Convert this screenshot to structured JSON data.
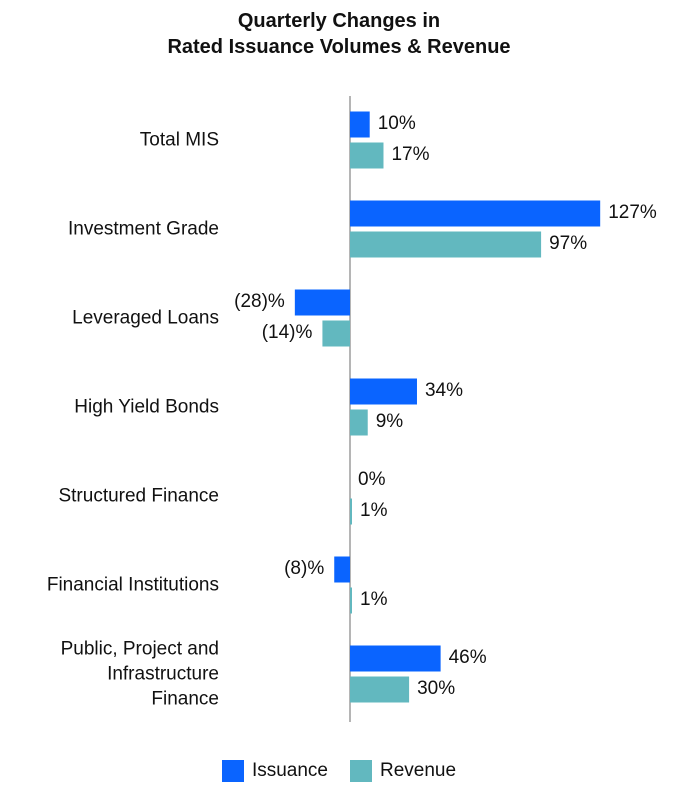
{
  "chart_data": {
    "type": "bar",
    "orientation": "horizontal",
    "title_lines": [
      "Quarterly Changes in",
      "Rated Issuance Volumes & Revenue"
    ],
    "categories": [
      [
        "Total MIS"
      ],
      [
        "Investment Grade"
      ],
      [
        "Leveraged Loans"
      ],
      [
        "High Yield Bonds"
      ],
      [
        "Structured Finance"
      ],
      [
        "Financial Institutions"
      ],
      [
        "Public, Project and",
        "Infrastructure",
        "Finance"
      ]
    ],
    "series": [
      {
        "name": "Issuance",
        "color": "#0a64ff",
        "values": [
          10,
          127,
          -28,
          34,
          0,
          -8,
          46
        ],
        "labels": [
          "10%",
          "127%",
          "(28)%",
          "34%",
          "0%",
          "(8)%",
          "46%"
        ]
      },
      {
        "name": "Revenue",
        "color": "#62b8bf",
        "values": [
          17,
          97,
          -14,
          9,
          1,
          1,
          30
        ],
        "labels": [
          "17%",
          "97%",
          "(14)%",
          "9%",
          "1%",
          "1%",
          "30%"
        ]
      }
    ],
    "legend_position": "bottom",
    "grid": false
  }
}
